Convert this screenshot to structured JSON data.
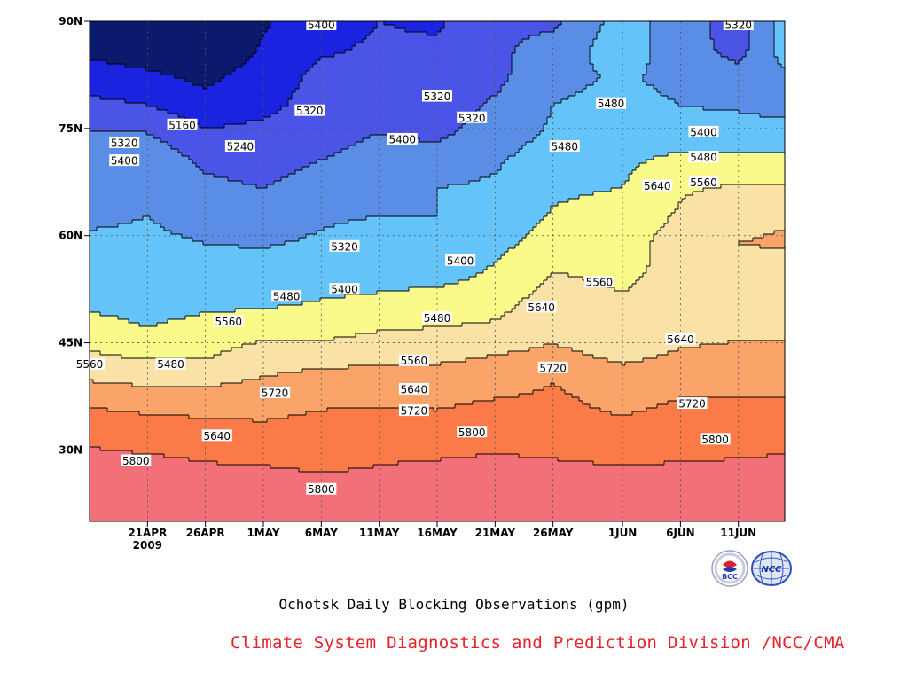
{
  "chart_data": {
    "type": "heatmap",
    "title": "Ochotsk Daily Blocking Observations (gpm)",
    "units": "gpm",
    "x_axis": {
      "year": "2009",
      "ticks": [
        {
          "date": "2009-04-21",
          "label": "21APR"
        },
        {
          "date": "2009-04-26",
          "label": "26APR"
        },
        {
          "date": "2009-05-01",
          "label": "1MAY"
        },
        {
          "date": "2009-05-06",
          "label": "6MAY"
        },
        {
          "date": "2009-05-11",
          "label": "11MAY"
        },
        {
          "date": "2009-05-16",
          "label": "16MAY"
        },
        {
          "date": "2009-05-21",
          "label": "21MAY"
        },
        {
          "date": "2009-05-26",
          "label": "26MAY"
        },
        {
          "date": "2009-06-01",
          "label": "1JUN"
        },
        {
          "date": "2009-06-06",
          "label": "6JUN"
        },
        {
          "date": "2009-06-11",
          "label": "11JUN"
        }
      ],
      "range": [
        "2009-04-16",
        "2009-06-15"
      ]
    },
    "y_axis": {
      "ticks": [
        {
          "lat": 30,
          "label": "30N"
        },
        {
          "lat": 45,
          "label": "45N"
        },
        {
          "lat": 60,
          "label": "60N"
        },
        {
          "lat": 75,
          "label": "75N"
        },
        {
          "lat": 90,
          "label": "90N"
        }
      ],
      "range": [
        20,
        90
      ]
    },
    "grid": true,
    "contour_levels": [
      5160,
      5240,
      5320,
      5400,
      5480,
      5560,
      5640,
      5720,
      5800
    ],
    "fill_colors": [
      "#0c1a6e",
      "#1a24e0",
      "#4a54e6",
      "#5a8ee6",
      "#64c4fa",
      "#fafa8a",
      "#fae2a6",
      "#faa46a",
      "#fa7a48",
      "#f47078",
      "#ea3848"
    ],
    "profiles": [
      {
        "date": "2009-04-16",
        "heights": [
          5880,
          5850,
          5820,
          5790,
          5725,
          5645,
          5570,
          5505,
          5460,
          5430,
          5410,
          5390,
          5370,
          5350,
          5320,
          5260,
          5200,
          5140,
          5100
        ]
      },
      {
        "date": "2009-04-21",
        "heights": [
          5890,
          5850,
          5815,
          5780,
          5710,
          5630,
          5545,
          5480,
          5450,
          5420,
          5410,
          5400,
          5395,
          5380,
          5320,
          5240,
          5180,
          5110,
          5080
        ]
      },
      {
        "date": "2009-04-26",
        "heights": [
          5880,
          5840,
          5805,
          5770,
          5700,
          5630,
          5550,
          5500,
          5460,
          5425,
          5400,
          5380,
          5340,
          5300,
          5250,
          5190,
          5140,
          5080,
          5060
        ]
      },
      {
        "date": "2009-05-01",
        "heights": [
          5870,
          5840,
          5800,
          5750,
          5700,
          5650,
          5600,
          5520,
          5460,
          5420,
          5395,
          5360,
          5320,
          5280,
          5260,
          5220,
          5200,
          5170,
          5150
        ]
      },
      {
        "date": "2009-05-06",
        "heights": [
          5860,
          5830,
          5790,
          5760,
          5720,
          5680,
          5600,
          5520,
          5480,
          5440,
          5410,
          5390,
          5360,
          5320,
          5290,
          5270,
          5260,
          5230,
          5210
        ]
      },
      {
        "date": "2009-05-11",
        "heights": [
          5860,
          5830,
          5800,
          5770,
          5725,
          5680,
          5620,
          5550,
          5490,
          5450,
          5430,
          5400,
          5380,
          5350,
          5320,
          5290,
          5270,
          5250,
          5240
        ]
      },
      {
        "date": "2009-05-16",
        "heights": [
          5890,
          5845,
          5810,
          5765,
          5720,
          5680,
          5620,
          5560,
          5510,
          5440,
          5410,
          5400,
          5400,
          5360,
          5300,
          5280,
          5290,
          5250,
          5230
        ]
      },
      {
        "date": "2009-05-21",
        "heights": [
          5890,
          5850,
          5815,
          5780,
          5740,
          5690,
          5640,
          5570,
          5530,
          5490,
          5455,
          5430,
          5410,
          5390,
          5360,
          5330,
          5300,
          5300,
          5300
        ]
      },
      {
        "date": "2009-05-26",
        "heights": [
          5860,
          5840,
          5810,
          5770,
          5740,
          5720,
          5660,
          5610,
          5590,
          5560,
          5520,
          5485,
          5470,
          5440,
          5410,
          5400,
          5380,
          5360,
          5300
        ]
      },
      {
        "date": "2009-06-01",
        "heights": [
          5870,
          5840,
          5800,
          5760,
          5710,
          5680,
          5620,
          5570,
          5565,
          5545,
          5525,
          5505,
          5480,
          5465,
          5430,
          5420,
          5410,
          5440,
          5440
        ]
      },
      {
        "date": "2009-06-06",
        "heights": [
          5890,
          5845,
          5805,
          5770,
          5735,
          5700,
          5650,
          5610,
          5590,
          5580,
          5600,
          5570,
          5550,
          5500,
          5430,
          5400,
          5380,
          5360,
          5350
        ]
      },
      {
        "date": "2009-06-11",
        "heights": [
          5890,
          5845,
          5810,
          5770,
          5740,
          5700,
          5660,
          5620,
          5600,
          5600,
          5640,
          5620,
          5570,
          5500,
          5430,
          5390,
          5350,
          5290,
          5290
        ]
      },
      {
        "date": "2009-06-15",
        "heights": [
          5890,
          5850,
          5815,
          5780,
          5740,
          5700,
          5660,
          5620,
          5600,
          5600,
          5650,
          5630,
          5570,
          5500,
          5420,
          5380,
          5380,
          5440,
          5440
        ]
      }
    ],
    "profile_lats": [
      20,
      23.9,
      27.8,
      31.7,
      35.6,
      39.4,
      43.3,
      47.2,
      51.1,
      55,
      58.9,
      62.8,
      66.7,
      70.6,
      74.4,
      78.3,
      82.2,
      86.1,
      90
    ],
    "contour_labels": [
      {
        "text": "5400",
        "date": "2009-05-06",
        "lat": 89.5
      },
      {
        "text": "5320",
        "date": "2009-06-11",
        "lat": 89.5
      },
      {
        "text": "5320",
        "date": "2009-05-16",
        "lat": 79.5
      },
      {
        "text": "5480",
        "date": "2009-05-31",
        "lat": 78.5
      },
      {
        "text": "5160",
        "date": "2009-04-24",
        "lat": 75.5
      },
      {
        "text": "5320",
        "date": "2009-05-05",
        "lat": 77.5
      },
      {
        "text": "5320",
        "date": "2009-05-19",
        "lat": 76.5
      },
      {
        "text": "5400",
        "date": "2009-05-13",
        "lat": 73.5
      },
      {
        "text": "5400",
        "date": "2009-06-08",
        "lat": 74.5
      },
      {
        "text": "5320",
        "date": "2009-04-19",
        "lat": 73
      },
      {
        "text": "5240",
        "date": "2009-04-29",
        "lat": 72.5
      },
      {
        "text": "5480",
        "date": "2009-05-27",
        "lat": 72.5
      },
      {
        "text": "5400",
        "date": "2009-04-19",
        "lat": 70.5
      },
      {
        "text": "5480",
        "date": "2009-06-08",
        "lat": 71
      },
      {
        "text": "5560",
        "date": "2009-06-08",
        "lat": 67.5
      },
      {
        "text": "5640",
        "date": "2009-06-04",
        "lat": 67
      },
      {
        "text": "5320",
        "date": "2009-05-08",
        "lat": 58.5
      },
      {
        "text": "5400",
        "date": "2009-05-18",
        "lat": 56.5
      },
      {
        "text": "5400",
        "date": "2009-05-08",
        "lat": 52.5
      },
      {
        "text": "5560",
        "date": "2009-05-30",
        "lat": 53.5
      },
      {
        "text": "5480",
        "date": "2009-05-03",
        "lat": 51.5
      },
      {
        "text": "5640",
        "date": "2009-05-25",
        "lat": 50
      },
      {
        "text": "5480",
        "date": "2009-05-16",
        "lat": 48.5
      },
      {
        "text": "5560",
        "date": "2009-04-28",
        "lat": 48
      },
      {
        "text": "5640",
        "date": "2009-06-06",
        "lat": 45.5
      },
      {
        "text": "5560",
        "date": "2009-04-16",
        "lat": 42
      },
      {
        "text": "5480",
        "date": "2009-04-23",
        "lat": 42
      },
      {
        "text": "5560",
        "date": "2009-05-14",
        "lat": 42.5
      },
      {
        "text": "5720",
        "date": "2009-05-26",
        "lat": 41.5
      },
      {
        "text": "5640",
        "date": "2009-05-14",
        "lat": 38.5
      },
      {
        "text": "5720",
        "date": "2009-05-02",
        "lat": 38
      },
      {
        "text": "5720",
        "date": "2009-06-07",
        "lat": 36.5
      },
      {
        "text": "5720",
        "date": "2009-05-14",
        "lat": 35.5
      },
      {
        "text": "5800",
        "date": "2009-05-19",
        "lat": 32.5
      },
      {
        "text": "5640",
        "date": "2009-04-27",
        "lat": 32
      },
      {
        "text": "5800",
        "date": "2009-06-09",
        "lat": 31.5
      },
      {
        "text": "5800",
        "date": "2009-04-20",
        "lat": 28.5
      },
      {
        "text": "5800",
        "date": "2009-05-06",
        "lat": 24.5
      }
    ]
  },
  "caption": "Ochotsk Daily Blocking Observations (gpm)",
  "credit": "Climate System Diagnostics and Prediction Division /NCC/CMA",
  "logos": {
    "left": {
      "name": "bcc-logo-icon",
      "text": "BCC"
    },
    "right": {
      "name": "ncc-logo-icon",
      "text": "NCC"
    }
  }
}
